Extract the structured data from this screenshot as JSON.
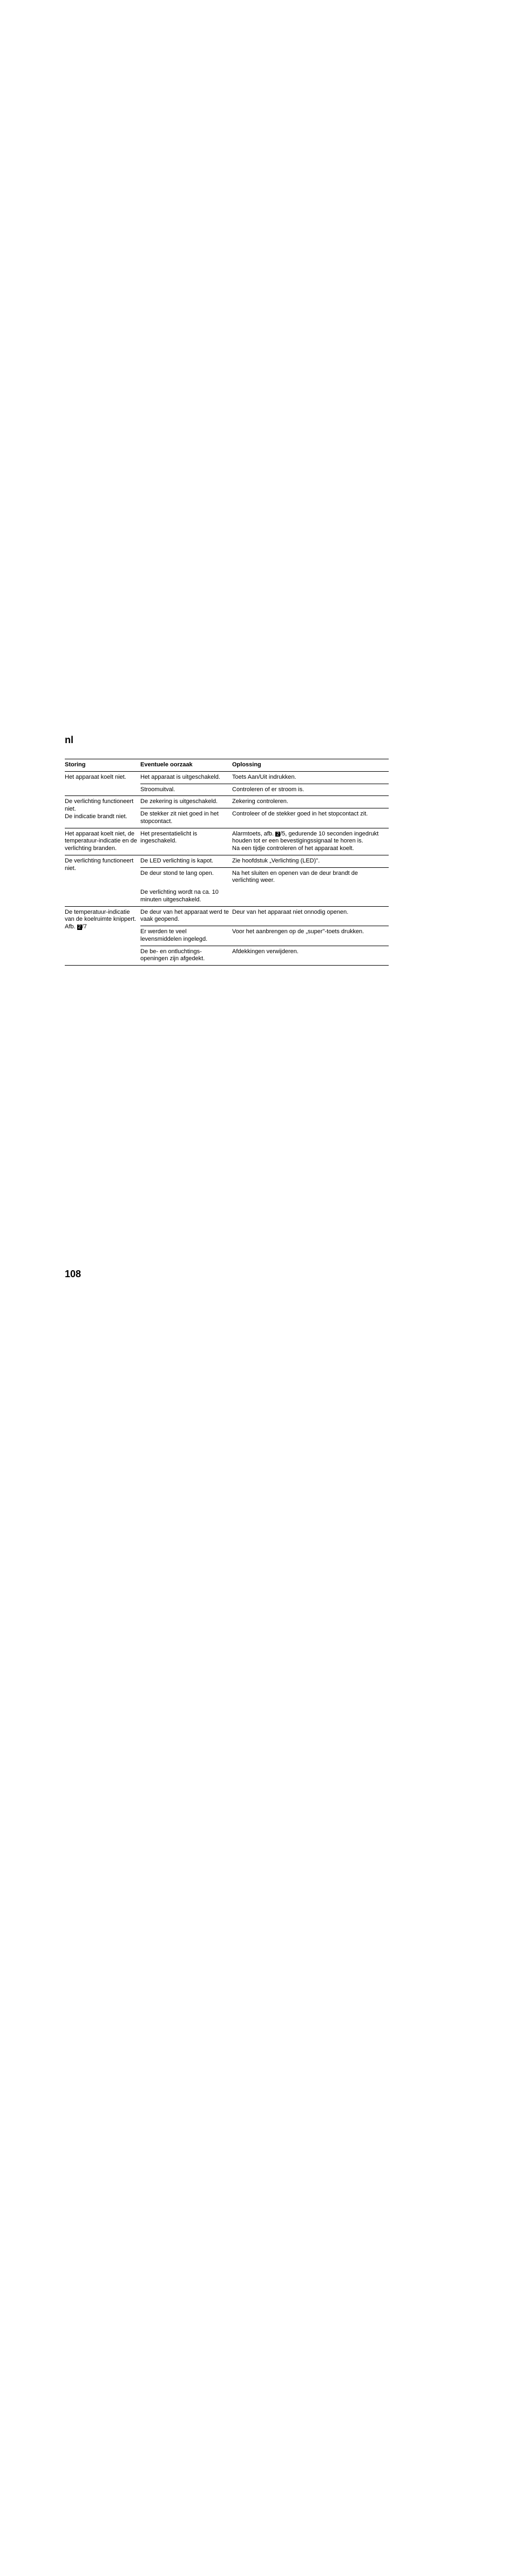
{
  "lang": "nl",
  "page_number": "108",
  "table": {
    "headers": {
      "storing": "Storing",
      "oorzaak": "Eventuele oorzaak",
      "oplossing": "Oplossing"
    },
    "rows": [
      {
        "s": "Het apparaat koelt niet.",
        "c": "Het apparaat is uitgeschakeld.",
        "o": "Toets Aan/Uit indrukken.",
        "rowspan_s": 2,
        "section_end": false
      },
      {
        "s": "",
        "c": "Stroomuitval.",
        "o": "Controleren of er stroom is.",
        "section_end": false,
        "no_bottom": false,
        "skip_s": true
      },
      {
        "s": "De verlichting functioneert niet.\nDe indicatie brandt niet.",
        "c": "De zekering is uitgeschakeld.",
        "o": "Zekering controleren.",
        "rowspan_s": 2,
        "section_end": false
      },
      {
        "s": "",
        "c": "De stekker zit niet goed in het stopcontact.",
        "o": "Controleer of de stekker goed in het stopcontact zit.",
        "section_end": true,
        "skip_s": true
      },
      {
        "s": "Het apparaat koelt niet, de temperatuur-indicatie en de verlichting branden.",
        "c": "Het presentatielicht is ingeschakeld.",
        "o_pre": "Alarmtoets, afb. ",
        "ref": "2",
        "o_post": "/5, gedurende 10 seconden ingedrukt houden tot er een bevestigingssignaal te horen is.\nNa een tijdje controleren of het apparaat koelt.",
        "section_end": true
      },
      {
        "s": "De verlichting functioneert niet.",
        "c": "De LED verlichting is kapot.",
        "o": "Zie hoofdstuk „Verlichting (LED)\".",
        "rowspan_s": 3,
        "section_end": false
      },
      {
        "s": "",
        "c": "De deur stond te lang open.",
        "o": "Na het sluiten en openen van de deur brandt de verlichting weer.",
        "skip_s": true,
        "no_bottom": true
      },
      {
        "s": "",
        "c": "De verlichting wordt na ca. 10 minuten uitgeschakeld.",
        "o": "",
        "section_end": true,
        "skip_s": true
      },
      {
        "s_pre": "De temperatuur-indicatie van de koelruimte knippert.\nAfb. ",
        "ref_s": "2",
        "s_post": "/7",
        "c": "De deur van het apparaat werd te vaak geopend.",
        "o": "Deur van het apparaat niet onnodig openen.",
        "rowspan_s": 3,
        "section_end": false
      },
      {
        "s": "",
        "c": "Er werden te veel levensmiddelen ingelegd.",
        "o": "Voor het aanbrengen op de „super\"-toets drukken.",
        "skip_s": true,
        "section_end": false
      },
      {
        "s": "",
        "c": "De be- en ontluchtings-openingen zijn afgedekt.",
        "o": "Afdekkingen verwijderen.",
        "section_end": true,
        "skip_s": true
      }
    ]
  }
}
